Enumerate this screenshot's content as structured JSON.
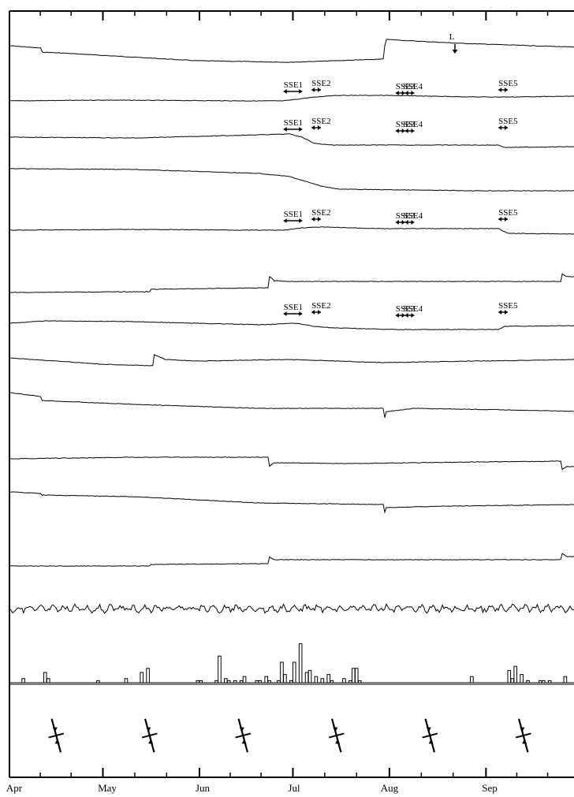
{
  "chart_data": {
    "type": "line",
    "x_axis": {
      "months": [
        "Apr",
        "May",
        "Jun",
        "Jul",
        "Aug",
        "Sep"
      ],
      "range": [
        "Apr 1",
        "Sep 30"
      ]
    },
    "marker_L": {
      "label": "L",
      "day": 143
    },
    "sse_labels": [
      "SSE1",
      "SSE2",
      "SSE3",
      "SSE4",
      "SSE5"
    ],
    "sse_windows_days": [
      [
        88,
        94
      ],
      [
        97,
        100
      ],
      [
        124,
        127
      ],
      [
        127,
        130
      ],
      [
        157,
        160
      ]
    ],
    "sse_rows": [
      1,
      2,
      4,
      6
    ],
    "traces": [
      {
        "row": 0,
        "knots": [
          [
            0,
            0
          ],
          [
            10,
            3
          ],
          [
            10.3,
            8
          ],
          [
            20,
            10
          ],
          [
            60,
            19
          ],
          [
            90,
            21
          ],
          [
            120,
            17
          ],
          [
            120.5,
            0
          ],
          [
            121,
            -8
          ],
          [
            130,
            -6
          ],
          [
            145,
            -3
          ],
          [
            183,
            2
          ]
        ]
      },
      {
        "row": 1,
        "knots": [
          [
            0,
            0
          ],
          [
            30,
            -1
          ],
          [
            80,
            0
          ],
          [
            88,
            0
          ],
          [
            96,
            -4
          ],
          [
            104,
            -7
          ],
          [
            120,
            -7
          ],
          [
            150,
            -5
          ],
          [
            160,
            -5
          ],
          [
            183,
            -6
          ]
        ]
      },
      {
        "row": 2,
        "knots": [
          [
            0,
            -2
          ],
          [
            40,
            -1
          ],
          [
            80,
            -5
          ],
          [
            90,
            -6
          ],
          [
            94,
            -2
          ],
          [
            98,
            6
          ],
          [
            104,
            8
          ],
          [
            150,
            8
          ],
          [
            157,
            8
          ],
          [
            159,
            11
          ],
          [
            183,
            10
          ]
        ]
      },
      {
        "row": 3,
        "knots": [
          [
            0,
            -4
          ],
          [
            40,
            -3
          ],
          [
            80,
            2
          ],
          [
            90,
            6
          ],
          [
            100,
            18
          ],
          [
            106,
            22
          ],
          [
            150,
            24
          ],
          [
            183,
            24
          ]
        ]
      },
      {
        "row": 4,
        "knots": [
          [
            0,
            0
          ],
          [
            40,
            -1
          ],
          [
            80,
            0
          ],
          [
            88,
            0
          ],
          [
            94,
            -3
          ],
          [
            100,
            -4
          ],
          [
            120,
            -2
          ],
          [
            150,
            -2
          ],
          [
            157,
            -2
          ],
          [
            160,
            4
          ],
          [
            183,
            5
          ]
        ]
      },
      {
        "row": 5,
        "knots": [
          [
            0,
            9
          ],
          [
            45,
            8
          ],
          [
            45.3,
            5
          ],
          [
            83,
            3
          ],
          [
            83.3,
            -12
          ],
          [
            85,
            -6
          ],
          [
            90,
            -5
          ],
          [
            177,
            -5
          ],
          [
            177.3,
            -15
          ],
          [
            179,
            -11
          ],
          [
            183,
            -11
          ]
        ]
      },
      {
        "row": 6,
        "knots": [
          [
            0,
            0
          ],
          [
            12,
            -3
          ],
          [
            40,
            -2
          ],
          [
            80,
            2
          ],
          [
            92,
            0
          ],
          [
            98,
            4
          ],
          [
            104,
            6
          ],
          [
            125,
            8
          ],
          [
            150,
            8
          ],
          [
            157,
            8
          ],
          [
            159,
            4
          ],
          [
            183,
            3
          ]
        ]
      },
      {
        "row": 7,
        "knots": [
          [
            0,
            -4
          ],
          [
            30,
            4
          ],
          [
            46,
            6
          ],
          [
            46.5,
            -8
          ],
          [
            50,
            -2
          ],
          [
            60,
            0
          ],
          [
            90,
            -2
          ],
          [
            120,
            2
          ],
          [
            150,
            0
          ],
          [
            183,
            -2
          ]
        ]
      },
      {
        "row": 8,
        "knots": [
          [
            0,
            -12
          ],
          [
            10,
            -7
          ],
          [
            10.3,
            -2
          ],
          [
            40,
            3
          ],
          [
            80,
            8
          ],
          [
            120,
            8
          ],
          [
            120.5,
            20
          ],
          [
            121,
            12
          ],
          [
            130,
            8
          ],
          [
            160,
            10
          ],
          [
            183,
            12
          ]
        ]
      },
      {
        "row": 9,
        "knots": [
          [
            0,
            0
          ],
          [
            40,
            -2
          ],
          [
            83,
            -2
          ],
          [
            83.3,
            10
          ],
          [
            85,
            5
          ],
          [
            110,
            6
          ],
          [
            150,
            4
          ],
          [
            177,
            3
          ],
          [
            177.3,
            14
          ],
          [
            179,
            10
          ],
          [
            183,
            10
          ]
        ]
      },
      {
        "row": 10,
        "knots": [
          [
            0,
            -8
          ],
          [
            10,
            -6
          ],
          [
            10.3,
            -4
          ],
          [
            40,
            -2
          ],
          [
            80,
            6
          ],
          [
            120,
            8
          ],
          [
            120.5,
            18
          ],
          [
            121,
            12
          ],
          [
            140,
            10
          ],
          [
            183,
            8
          ]
        ]
      },
      {
        "row": 11,
        "knots": [
          [
            0,
            0
          ],
          [
            45,
            0
          ],
          [
            45.3,
            -2
          ],
          [
            83,
            -3
          ],
          [
            83.3,
            -12
          ],
          [
            85,
            -8
          ],
          [
            177,
            -8
          ],
          [
            177.3,
            -16
          ],
          [
            179,
            -12
          ],
          [
            183,
            -12
          ]
        ]
      },
      {
        "row": 12,
        "knots": [
          [
            0,
            0
          ],
          [
            183,
            0
          ]
        ],
        "noise": 6
      }
    ],
    "rainfall": [
      {
        "day": 4,
        "v": 2
      },
      {
        "day": 11,
        "v": 5
      },
      {
        "day": 12,
        "v": 2
      },
      {
        "day": 28,
        "v": 1
      },
      {
        "day": 37,
        "v": 2
      },
      {
        "day": 42,
        "v": 5
      },
      {
        "day": 44,
        "v": 7
      },
      {
        "day": 60,
        "v": 1
      },
      {
        "day": 61,
        "v": 1
      },
      {
        "day": 66,
        "v": 1
      },
      {
        "day": 67,
        "v": 13
      },
      {
        "day": 69,
        "v": 2
      },
      {
        "day": 70,
        "v": 1
      },
      {
        "day": 72,
        "v": 1
      },
      {
        "day": 74,
        "v": 1
      },
      {
        "day": 75,
        "v": 3
      },
      {
        "day": 79,
        "v": 1
      },
      {
        "day": 80,
        "v": 1
      },
      {
        "day": 82,
        "v": 3
      },
      {
        "day": 83,
        "v": 1
      },
      {
        "day": 86,
        "v": 1
      },
      {
        "day": 87,
        "v": 10
      },
      {
        "day": 88,
        "v": 4
      },
      {
        "day": 90,
        "v": 1
      },
      {
        "day": 91,
        "v": 10
      },
      {
        "day": 93,
        "v": 19
      },
      {
        "day": 95,
        "v": 5
      },
      {
        "day": 96,
        "v": 6
      },
      {
        "day": 98,
        "v": 3
      },
      {
        "day": 100,
        "v": 2
      },
      {
        "day": 102,
        "v": 4
      },
      {
        "day": 103,
        "v": 1
      },
      {
        "day": 107,
        "v": 2
      },
      {
        "day": 109,
        "v": 1
      },
      {
        "day": 110,
        "v": 7
      },
      {
        "day": 111,
        "v": 7
      },
      {
        "day": 112,
        "v": 1
      },
      {
        "day": 148,
        "v": 3
      },
      {
        "day": 160,
        "v": 6
      },
      {
        "day": 161,
        "v": 2
      },
      {
        "day": 162,
        "v": 8
      },
      {
        "day": 164,
        "v": 4
      },
      {
        "day": 166,
        "v": 1
      },
      {
        "day": 170,
        "v": 1
      },
      {
        "day": 171,
        "v": 1
      },
      {
        "day": 173,
        "v": 1
      },
      {
        "day": 178,
        "v": 3
      }
    ],
    "strain_glyph_days": [
      15,
      45,
      75,
      105,
      135,
      165
    ]
  }
}
